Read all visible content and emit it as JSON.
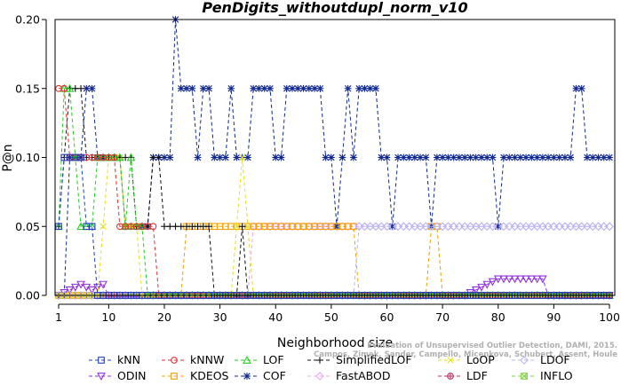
{
  "chart_data": {
    "type": "line",
    "title": "PenDigits_withoutdupl_norm_v10",
    "xlabel": "Neighborhood size",
    "ylabel": "P@n",
    "xlim": [
      1,
      100
    ],
    "ylim": [
      0,
      0.2
    ],
    "xticks": [
      1,
      10,
      20,
      30,
      40,
      50,
      60,
      70,
      80,
      90,
      100
    ],
    "yticks": [
      0,
      0.05,
      0.1,
      0.15,
      0.2
    ],
    "ytick_labels": [
      "0.00",
      "0.05",
      "0.10",
      "0.15",
      "0.20"
    ],
    "grid": false,
    "legend_position": "bottom",
    "credit": [
      "Campos, Zimek, Sander, Campello, Micenkova, Schubert, Assent, Houle",
      "Evaluation of Unsupervised Outlier Detection, DAMI, 2015."
    ],
    "series": [
      {
        "name": "kNN",
        "color": "#1f3fbf",
        "marker": "square",
        "y": [
          0.05,
          0.1,
          0.1,
          0.1,
          0.1,
          0.05,
          0.05,
          0,
          0,
          0,
          0,
          0,
          0,
          0,
          0,
          0,
          0,
          0,
          0,
          0,
          0,
          0,
          0,
          0,
          0,
          0,
          0,
          0,
          0,
          0,
          0,
          0,
          0,
          0,
          0,
          0,
          0,
          0,
          0,
          0,
          0,
          0,
          0,
          0,
          0,
          0,
          0,
          0,
          0,
          0,
          0,
          0,
          0,
          0,
          0,
          0,
          0,
          0,
          0,
          0,
          0,
          0,
          0,
          0,
          0,
          0,
          0,
          0,
          0,
          0,
          0,
          0,
          0,
          0,
          0,
          0,
          0,
          0,
          0,
          0,
          0,
          0,
          0,
          0,
          0,
          0,
          0,
          0,
          0,
          0,
          0,
          0,
          0,
          0,
          0,
          0,
          0,
          0,
          0,
          0
        ]
      },
      {
        "name": "kNNW",
        "color": "#e03030",
        "marker": "circle",
        "y": [
          0.15,
          0.15,
          0.1,
          0.1,
          0.1,
          0.1,
          0.1,
          0.1,
          0.1,
          0.1,
          0.1,
          0.05,
          0.05,
          0.05,
          0.05,
          0.05,
          0.05,
          0.05,
          0,
          0,
          0,
          0,
          0,
          0,
          0,
          0,
          0,
          0,
          0,
          0,
          0,
          0,
          0,
          0,
          0,
          0,
          0,
          0,
          0,
          0,
          0,
          0,
          0,
          0,
          0,
          0,
          0,
          0,
          0,
          0,
          0,
          0,
          0,
          0,
          0,
          0,
          0,
          0,
          0,
          0,
          0,
          0,
          0,
          0,
          0,
          0,
          0,
          0,
          0,
          0,
          0,
          0,
          0,
          0,
          0,
          0,
          0,
          0,
          0,
          0,
          0,
          0,
          0,
          0,
          0,
          0,
          0,
          0,
          0,
          0,
          0,
          0,
          0,
          0,
          0,
          0,
          0,
          0,
          0,
          0
        ]
      },
      {
        "name": "LOF",
        "color": "#22cc22",
        "marker": "triangle",
        "y": [
          0.05,
          0.15,
          0.15,
          0.1,
          0.05,
          0.05,
          0.05,
          0.1,
          0.1,
          0.1,
          0.1,
          0.1,
          0.05,
          0.1,
          0.05,
          0.05,
          0,
          0,
          0,
          0,
          0,
          0,
          0,
          0,
          0,
          0,
          0,
          0,
          0,
          0,
          0,
          0,
          0,
          0,
          0,
          0,
          0,
          0,
          0,
          0,
          0,
          0,
          0,
          0,
          0,
          0,
          0,
          0,
          0,
          0,
          0,
          0,
          0,
          0,
          0,
          0,
          0,
          0,
          0,
          0,
          0,
          0,
          0,
          0,
          0,
          0,
          0,
          0,
          0,
          0,
          0,
          0,
          0,
          0,
          0,
          0,
          0,
          0,
          0,
          0,
          0,
          0,
          0,
          0,
          0,
          0,
          0,
          0,
          0,
          0,
          0,
          0,
          0,
          0,
          0,
          0,
          0,
          0,
          0,
          0
        ]
      },
      {
        "name": "SimplifiedLOF",
        "color": "#111111",
        "marker": "plus",
        "y": [
          0.05,
          0.1,
          0.15,
          0.15,
          0.15,
          0.1,
          0.1,
          0.1,
          0.1,
          0.1,
          0.1,
          0.1,
          0.1,
          0.1,
          0.05,
          0.05,
          0.05,
          0.1,
          0.1,
          0.05,
          0.05,
          0.05,
          0.05,
          0.05,
          0.05,
          0.05,
          0.05,
          0.05,
          0,
          0,
          0,
          0,
          0,
          0.05,
          0,
          0,
          0,
          0,
          0,
          0,
          0,
          0,
          0,
          0,
          0,
          0,
          0,
          0,
          0,
          0,
          0,
          0,
          0,
          0,
          0,
          0,
          0,
          0,
          0,
          0,
          0,
          0,
          0,
          0,
          0,
          0,
          0,
          0,
          0,
          0,
          0,
          0,
          0,
          0,
          0,
          0,
          0,
          0,
          0,
          0,
          0,
          0,
          0,
          0,
          0,
          0,
          0,
          0,
          0,
          0,
          0,
          0,
          0,
          0,
          0,
          0,
          0,
          0,
          0,
          0
        ]
      },
      {
        "name": "LoOP",
        "color": "#e8e020",
        "marker": "x",
        "y": [
          0,
          0,
          0,
          0,
          0,
          0,
          0,
          0,
          0.05,
          0.1,
          0.1,
          0.1,
          0.05,
          0.05,
          0.05,
          0,
          0,
          0,
          0,
          0,
          0,
          0,
          0,
          0,
          0,
          0,
          0,
          0,
          0,
          0,
          0,
          0,
          0.05,
          0.1,
          0.05,
          0,
          0,
          0,
          0,
          0,
          0,
          0,
          0,
          0,
          0,
          0,
          0,
          0,
          0,
          0,
          0,
          0,
          0,
          0,
          0,
          0,
          0,
          0,
          0,
          0,
          0,
          0,
          0,
          0,
          0,
          0,
          0,
          0,
          0,
          0,
          0,
          0,
          0,
          0,
          0,
          0,
          0,
          0,
          0,
          0,
          0,
          0,
          0,
          0,
          0,
          0,
          0,
          0,
          0,
          0,
          0,
          0,
          0,
          0,
          0,
          0,
          0,
          0,
          0,
          0
        ]
      },
      {
        "name": "LDOF",
        "color": "#b8b8f0",
        "marker": "diamond",
        "y": [
          0,
          0,
          0,
          0,
          0,
          0,
          0,
          0,
          0,
          0,
          0,
          0,
          0,
          0,
          0,
          0,
          0,
          0,
          0,
          0,
          0,
          0,
          0,
          0,
          0,
          0,
          0,
          0,
          0,
          0,
          0,
          0,
          0,
          0,
          0,
          0,
          0,
          0,
          0,
          0,
          0,
          0,
          0,
          0,
          0,
          0,
          0,
          0,
          0,
          0,
          0,
          0,
          0,
          0,
          0.05,
          0.05,
          0.05,
          0.05,
          0.05,
          0.05,
          0.05,
          0.05,
          0.05,
          0.05,
          0.05,
          0.05,
          0.05,
          0.05,
          0.05,
          0.05,
          0.05,
          0.05,
          0.05,
          0.05,
          0.05,
          0.05,
          0.05,
          0.05,
          0.05,
          0.05,
          0.05,
          0.05,
          0.05,
          0.05,
          0.05,
          0.05,
          0.05,
          0.05,
          0.05,
          0.05,
          0.05,
          0.05,
          0.05,
          0.05,
          0.05,
          0.05,
          0.05,
          0.05,
          0.05,
          0.05
        ]
      },
      {
        "name": "ODIN",
        "color": "#9030e0",
        "marker": "triangle-down",
        "y": [
          0,
          0.002,
          0.004,
          0.006,
          0.008,
          0.006,
          0.004,
          0.006,
          0.008,
          0,
          0,
          0,
          0,
          0,
          0,
          0,
          0,
          0,
          0,
          0,
          0,
          0,
          0,
          0,
          0,
          0,
          0,
          0,
          0,
          0,
          0,
          0,
          0,
          0,
          0,
          0,
          0,
          0,
          0,
          0,
          0,
          0,
          0,
          0,
          0,
          0,
          0,
          0,
          0,
          0,
          0,
          0,
          0,
          0,
          0,
          0,
          0,
          0,
          0,
          0,
          0,
          0,
          0,
          0,
          0,
          0,
          0,
          0,
          0,
          0,
          0,
          0,
          0,
          0,
          0.002,
          0.004,
          0.006,
          0.008,
          0.01,
          0.012,
          0.012,
          0.012,
          0.012,
          0.012,
          0.012,
          0.012,
          0.012,
          0.012,
          0,
          0,
          0,
          0,
          0,
          0,
          0,
          0,
          0,
          0,
          0,
          0
        ]
      },
      {
        "name": "KDEOS",
        "color": "#f0a000",
        "marker": "square",
        "y": [
          0,
          0,
          0,
          0,
          0,
          0,
          0,
          0,
          0,
          0,
          0,
          0,
          0,
          0,
          0,
          0,
          0,
          0,
          0,
          0,
          0,
          0,
          0,
          0.05,
          0.05,
          0.05,
          0.05,
          0.05,
          0.05,
          0.05,
          0.05,
          0.05,
          0.05,
          0.05,
          0.05,
          0.05,
          0.05,
          0.05,
          0.05,
          0.05,
          0.05,
          0.05,
          0.05,
          0.05,
          0.05,
          0.05,
          0.05,
          0.05,
          0.05,
          0.05,
          0.05,
          0.05,
          0.05,
          0.05,
          0,
          0,
          0,
          0,
          0,
          0,
          0,
          0,
          0,
          0,
          0,
          0,
          0,
          0.05,
          0.05,
          0,
          0,
          0,
          0,
          0,
          0,
          0,
          0,
          0,
          0,
          0,
          0,
          0,
          0,
          0,
          0,
          0,
          0,
          0,
          0,
          0,
          0,
          0,
          0,
          0,
          0,
          0,
          0,
          0,
          0,
          0
        ]
      },
      {
        "name": "COF",
        "color": "#102890",
        "marker": "asterisk",
        "y": [
          0,
          0,
          0.1,
          0.1,
          0.1,
          0.15,
          0.15,
          0.1,
          0.1,
          0.1,
          0.1,
          0.1,
          0.05,
          0.05,
          0.05,
          0.05,
          0.05,
          0.1,
          0.1,
          0.1,
          0.1,
          0.2,
          0.15,
          0.15,
          0.15,
          0.1,
          0.15,
          0.15,
          0.1,
          0.1,
          0.1,
          0.15,
          0.1,
          0.1,
          0.1,
          0.15,
          0.15,
          0.15,
          0.15,
          0.1,
          0.1,
          0.15,
          0.15,
          0.15,
          0.15,
          0.15,
          0.15,
          0.15,
          0.1,
          0.1,
          0.05,
          0.1,
          0.15,
          0.1,
          0.15,
          0.15,
          0.15,
          0.15,
          0.1,
          0.1,
          0.05,
          0.1,
          0.1,
          0.1,
          0.1,
          0.1,
          0.1,
          0.05,
          0.1,
          0.1,
          0.1,
          0.1,
          0.1,
          0.1,
          0.1,
          0.1,
          0.1,
          0.1,
          0.1,
          0.05,
          0.1,
          0.1,
          0.1,
          0.1,
          0.1,
          0.1,
          0.1,
          0.1,
          0.1,
          0.1,
          0.1,
          0.1,
          0.1,
          0.15,
          0.15,
          0.1,
          0.1,
          0.1,
          0.1,
          0.1
        ]
      },
      {
        "name": "FastABOD",
        "color": "#f0a8f0",
        "marker": "diamond",
        "y": [
          0,
          0,
          0,
          0,
          0,
          0,
          0,
          0,
          0,
          0,
          0,
          0,
          0,
          0,
          0,
          0,
          0,
          0,
          0,
          0,
          0,
          0,
          0,
          0,
          0,
          0,
          0,
          0,
          0,
          0,
          0,
          0,
          0,
          0,
          0,
          0.05,
          0.05,
          0.05,
          0.05,
          0.05,
          0.05,
          0.05,
          0.05,
          0.05,
          0.05,
          0.05,
          0.05,
          0.05,
          0.05,
          0.05,
          0.05,
          0.05,
          0.05,
          0.05,
          0.05,
          0.05,
          0.05,
          0.05,
          0.05,
          0.05,
          0.05,
          0.05,
          0.05,
          0.05,
          0.05,
          0.05,
          0.05,
          0.05,
          0.05,
          0.05,
          0.05,
          0.05,
          0.05,
          0.05,
          0.05,
          0.05,
          0.05,
          0.05,
          0.05,
          0.05,
          0.05,
          0.05,
          0.05,
          0.05,
          0.05,
          0.05,
          0.05,
          0.05,
          0.05,
          0.05,
          0.05,
          0.05,
          0.05,
          0.05,
          0.05,
          0.05,
          0.05,
          0.05,
          0.05,
          0.05
        ]
      },
      {
        "name": "LDF",
        "color": "#c03060",
        "marker": "circle-plus",
        "y": [
          0,
          0,
          0,
          0,
          0,
          0,
          0,
          0,
          0,
          0,
          0,
          0,
          0,
          0,
          0,
          0,
          0,
          0,
          0,
          0,
          0,
          0,
          0,
          0,
          0,
          0,
          0,
          0,
          0,
          0,
          0,
          0,
          0,
          0,
          0,
          0,
          0,
          0,
          0,
          0,
          0,
          0,
          0,
          0,
          0,
          0,
          0,
          0,
          0,
          0,
          0,
          0,
          0,
          0,
          0,
          0,
          0,
          0,
          0,
          0,
          0,
          0,
          0,
          0,
          0,
          0,
          0,
          0,
          0,
          0,
          0,
          0,
          0,
          0,
          0,
          0,
          0,
          0,
          0,
          0,
          0,
          0,
          0,
          0,
          0,
          0,
          0,
          0,
          0,
          0,
          0,
          0,
          0,
          0,
          0,
          0,
          0,
          0,
          0,
          0
        ]
      },
      {
        "name": "INFLO",
        "color": "#80d040",
        "marker": "square-x",
        "y": [
          0,
          0,
          0,
          0,
          0,
          0,
          0,
          0,
          0,
          0,
          0,
          0,
          0,
          0,
          0,
          0,
          0,
          0,
          0,
          0,
          0,
          0,
          0,
          0,
          0,
          0,
          0,
          0,
          0,
          0,
          0,
          0,
          0,
          0,
          0,
          0,
          0,
          0,
          0,
          0,
          0,
          0,
          0,
          0,
          0,
          0,
          0,
          0,
          0,
          0,
          0,
          0,
          0,
          0,
          0,
          0,
          0,
          0,
          0,
          0,
          0,
          0,
          0,
          0,
          0,
          0,
          0,
          0,
          0,
          0,
          0,
          0,
          0,
          0,
          0,
          0,
          0,
          0,
          0,
          0,
          0,
          0,
          0,
          0,
          0,
          0,
          0,
          0,
          0,
          0,
          0,
          0,
          0,
          0,
          0,
          0,
          0,
          0,
          0,
          0
        ]
      }
    ]
  }
}
